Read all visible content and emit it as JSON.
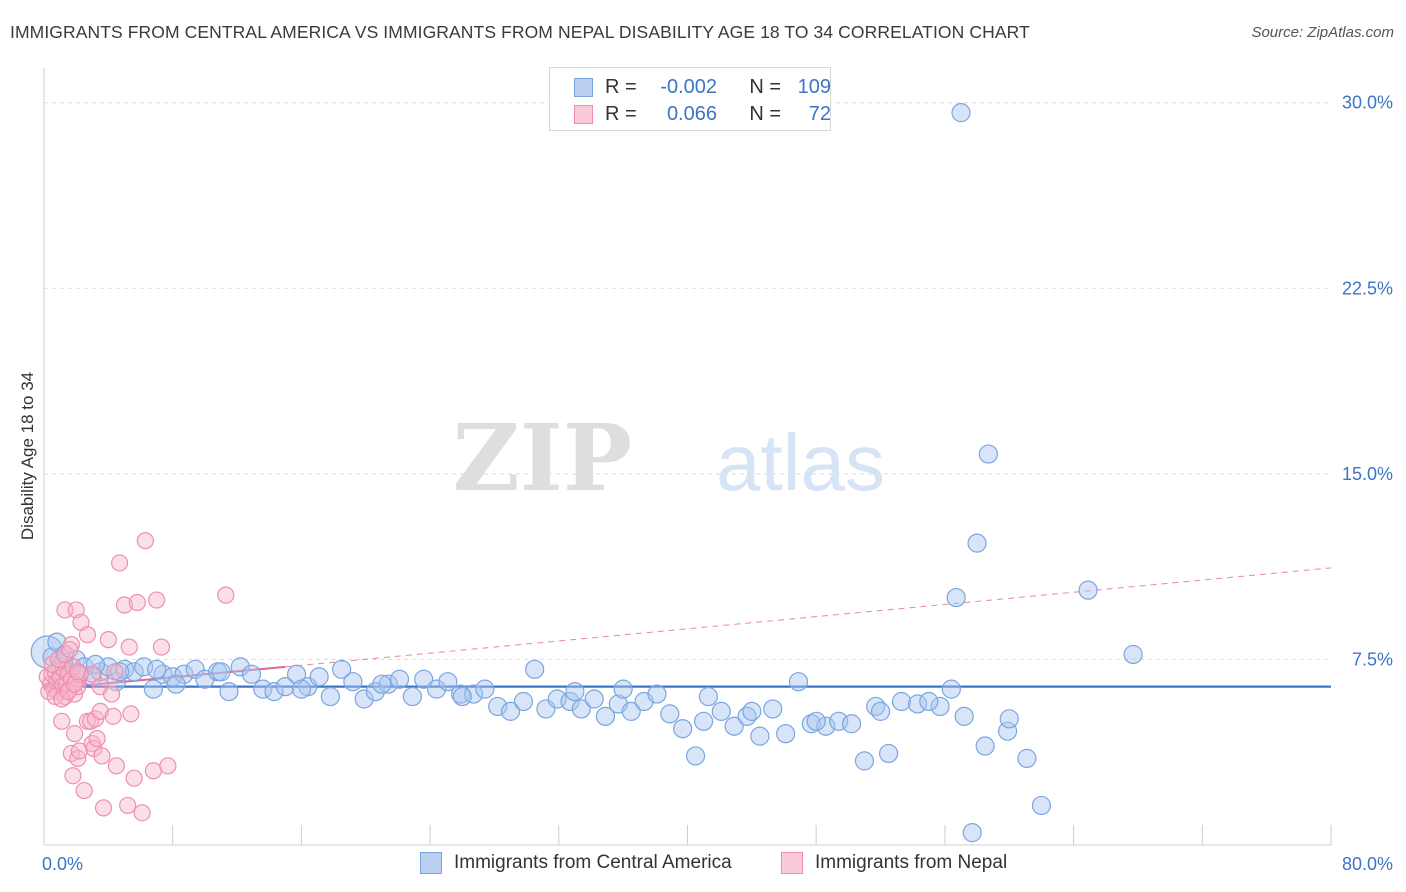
{
  "title": "IMMIGRANTS FROM CENTRAL AMERICA VS IMMIGRANTS FROM NEPAL DISABILITY AGE 18 TO 34 CORRELATION CHART",
  "source": "Source: ZipAtlas.com",
  "watermark": {
    "zip": "ZIP",
    "atlas": "atlas"
  },
  "colors": {
    "blue": "#3c74c8",
    "blue_fill": "#a9c6ef",
    "blue_stroke": "#7aa6e0",
    "pink": "#e06890",
    "pink_fill": "#f6b9cb",
    "pink_stroke": "#ef8fad",
    "grid": "#dcdcdc",
    "axis_text": "#3c74c8"
  },
  "stats": {
    "r_label": "R =",
    "n_label": "N =",
    "series": [
      {
        "name": "Immigrants from Central America",
        "r": "-0.002",
        "n": "109"
      },
      {
        "name": "Immigrants from Nepal",
        "r": "0.066",
        "n": "72"
      }
    ]
  },
  "chart_data": {
    "type": "scatter",
    "xlabel": "",
    "ylabel": "Disability Age 18 to 34",
    "xlim": [
      0,
      80
    ],
    "ylim": [
      0,
      31
    ],
    "x_tick_labels": [
      {
        "value": 0,
        "label": "0.0%"
      },
      {
        "value": 80,
        "label": "80.0%"
      }
    ],
    "y_tick_labels": [
      {
        "value": 7.5,
        "label": "7.5%"
      },
      {
        "value": 15.0,
        "label": "15.0%"
      },
      {
        "value": 22.5,
        "label": "22.5%"
      },
      {
        "value": 30.0,
        "label": "30.0%"
      }
    ],
    "legend": [
      "Immigrants from Central America",
      "Immigrants from Nepal"
    ],
    "series": [
      {
        "name": "Immigrants from Central America",
        "trend": {
          "x": [
            0,
            80
          ],
          "y": [
            6.4,
            6.4
          ],
          "style": "solid"
        },
        "points": [
          [
            0.2,
            7.8
          ],
          [
            0.5,
            7.6
          ],
          [
            0.8,
            8.2
          ],
          [
            1.0,
            7.2
          ],
          [
            1.3,
            7.7
          ],
          [
            1.6,
            7.0
          ],
          [
            2.0,
            7.5
          ],
          [
            2.5,
            7.2
          ],
          [
            3.0,
            6.8
          ],
          [
            3.5,
            7.0
          ],
          [
            4.0,
            7.2
          ],
          [
            4.5,
            6.6
          ],
          [
            5.0,
            7.1
          ],
          [
            5.6,
            7.0
          ],
          [
            6.2,
            7.2
          ],
          [
            6.8,
            6.3
          ],
          [
            7.4,
            6.9
          ],
          [
            8.0,
            6.8
          ],
          [
            8.7,
            6.9
          ],
          [
            9.4,
            7.1
          ],
          [
            10.0,
            6.7
          ],
          [
            10.8,
            7.0
          ],
          [
            11.5,
            6.2
          ],
          [
            12.2,
            7.2
          ],
          [
            12.9,
            6.9
          ],
          [
            13.6,
            6.3
          ],
          [
            14.3,
            6.2
          ],
          [
            15.0,
            6.4
          ],
          [
            15.7,
            6.9
          ],
          [
            16.4,
            6.4
          ],
          [
            17.1,
            6.8
          ],
          [
            17.8,
            6.0
          ],
          [
            18.5,
            7.1
          ],
          [
            19.2,
            6.6
          ],
          [
            19.9,
            5.9
          ],
          [
            20.6,
            6.2
          ],
          [
            21.4,
            6.5
          ],
          [
            22.1,
            6.7
          ],
          [
            22.9,
            6.0
          ],
          [
            23.6,
            6.7
          ],
          [
            24.4,
            6.3
          ],
          [
            25.1,
            6.6
          ],
          [
            25.9,
            6.1
          ],
          [
            26.7,
            6.1
          ],
          [
            27.4,
            6.3
          ],
          [
            28.2,
            5.6
          ],
          [
            29.0,
            5.4
          ],
          [
            29.8,
            5.8
          ],
          [
            30.5,
            7.1
          ],
          [
            31.2,
            5.5
          ],
          [
            31.9,
            5.9
          ],
          [
            32.7,
            5.8
          ],
          [
            33.4,
            5.5
          ],
          [
            34.2,
            5.9
          ],
          [
            34.9,
            5.2
          ],
          [
            35.7,
            5.7
          ],
          [
            36.5,
            5.4
          ],
          [
            37.3,
            5.8
          ],
          [
            38.1,
            6.1
          ],
          [
            38.9,
            5.3
          ],
          [
            39.7,
            4.7
          ],
          [
            40.5,
            3.6
          ],
          [
            41.3,
            6.0
          ],
          [
            42.1,
            5.4
          ],
          [
            42.9,
            4.8
          ],
          [
            43.7,
            5.2
          ],
          [
            44.5,
            4.4
          ],
          [
            45.3,
            5.5
          ],
          [
            46.1,
            4.5
          ],
          [
            46.9,
            6.6
          ],
          [
            47.7,
            4.9
          ],
          [
            48.6,
            4.8
          ],
          [
            49.4,
            5.0
          ],
          [
            50.2,
            4.9
          ],
          [
            51.0,
            3.4
          ],
          [
            51.7,
            5.6
          ],
          [
            52.5,
            3.7
          ],
          [
            53.3,
            5.8
          ],
          [
            54.3,
            5.7
          ],
          [
            55.7,
            5.6
          ],
          [
            56.4,
            6.3
          ],
          [
            57.2,
            5.2
          ],
          [
            58.0,
            12.2
          ],
          [
            58.5,
            4.0
          ],
          [
            59.9,
            4.6
          ],
          [
            61.1,
            3.5
          ],
          [
            62.0,
            1.6
          ],
          [
            56.7,
            10.0
          ],
          [
            64.9,
            10.3
          ],
          [
            67.7,
            7.7
          ],
          [
            57.0,
            29.6
          ],
          [
            58.7,
            15.8
          ],
          [
            57.7,
            0.5
          ],
          [
            1.2,
            7.4
          ],
          [
            2.2,
            6.9
          ],
          [
            3.2,
            7.3
          ],
          [
            4.7,
            7.0
          ],
          [
            7.0,
            7.1
          ],
          [
            8.2,
            6.5
          ],
          [
            11.0,
            7.0
          ],
          [
            16.0,
            6.3
          ],
          [
            21.0,
            6.5
          ],
          [
            26.0,
            6.0
          ],
          [
            33.0,
            6.2
          ],
          [
            36.0,
            6.3
          ],
          [
            41.0,
            5.0
          ],
          [
            44.0,
            5.4
          ],
          [
            48.0,
            5.0
          ],
          [
            52.0,
            5.4
          ],
          [
            55.0,
            5.8
          ],
          [
            60.0,
            5.1
          ]
        ]
      },
      {
        "name": "Immigrants from Nepal",
        "trend": {
          "x": [
            0,
            15
          ],
          "y": [
            6.3,
            7.2
          ],
          "style": "solid",
          "extension": {
            "x": [
              15,
              80
            ],
            "y": [
              7.2,
              11.2
            ],
            "style": "dashed"
          }
        },
        "points": [
          [
            0.2,
            6.8
          ],
          [
            0.4,
            6.5
          ],
          [
            0.5,
            6.9
          ],
          [
            0.6,
            6.3
          ],
          [
            0.7,
            7.0
          ],
          [
            0.8,
            6.6
          ],
          [
            0.9,
            6.2
          ],
          [
            1.0,
            6.8
          ],
          [
            1.1,
            6.4
          ],
          [
            1.2,
            7.1
          ],
          [
            1.3,
            6.0
          ],
          [
            1.4,
            6.5
          ],
          [
            1.5,
            6.9
          ],
          [
            1.6,
            6.3
          ],
          [
            1.7,
            6.7
          ],
          [
            1.8,
            7.2
          ],
          [
            1.9,
            6.1
          ],
          [
            2.0,
            6.6
          ],
          [
            2.1,
            6.4
          ],
          [
            2.2,
            6.9
          ],
          [
            0.3,
            6.2
          ],
          [
            0.5,
            7.3
          ],
          [
            0.7,
            6.0
          ],
          [
            0.9,
            7.5
          ],
          [
            1.1,
            5.9
          ],
          [
            1.3,
            7.7
          ],
          [
            1.5,
            6.2
          ],
          [
            1.7,
            8.1
          ],
          [
            1.9,
            6.5
          ],
          [
            2.1,
            7.0
          ],
          [
            1.3,
            9.5
          ],
          [
            1.6,
            7.9
          ],
          [
            2.0,
            9.5
          ],
          [
            2.3,
            9.0
          ],
          [
            2.7,
            8.5
          ],
          [
            3.0,
            6.9
          ],
          [
            3.5,
            6.4
          ],
          [
            4.0,
            8.3
          ],
          [
            4.4,
            7.0
          ],
          [
            4.7,
            11.4
          ],
          [
            5.0,
            9.7
          ],
          [
            5.3,
            8.0
          ],
          [
            5.8,
            9.8
          ],
          [
            6.3,
            12.3
          ],
          [
            7.0,
            9.9
          ],
          [
            7.3,
            8.0
          ],
          [
            11.3,
            10.1
          ],
          [
            1.1,
            5.0
          ],
          [
            1.7,
            3.7
          ],
          [
            1.8,
            2.8
          ],
          [
            1.9,
            4.5
          ],
          [
            2.1,
            3.5
          ],
          [
            2.2,
            3.8
          ],
          [
            2.5,
            2.2
          ],
          [
            2.7,
            5.0
          ],
          [
            2.9,
            5.0
          ],
          [
            3.0,
            4.1
          ],
          [
            3.1,
            3.9
          ],
          [
            3.2,
            5.1
          ],
          [
            3.3,
            4.3
          ],
          [
            3.5,
            5.4
          ],
          [
            3.6,
            3.6
          ],
          [
            3.7,
            1.5
          ],
          [
            4.2,
            6.1
          ],
          [
            4.3,
            5.2
          ],
          [
            4.5,
            3.2
          ],
          [
            5.2,
            1.6
          ],
          [
            5.4,
            5.3
          ],
          [
            5.6,
            2.7
          ],
          [
            6.1,
            1.3
          ],
          [
            6.8,
            3.0
          ],
          [
            7.7,
            3.2
          ]
        ]
      }
    ]
  }
}
